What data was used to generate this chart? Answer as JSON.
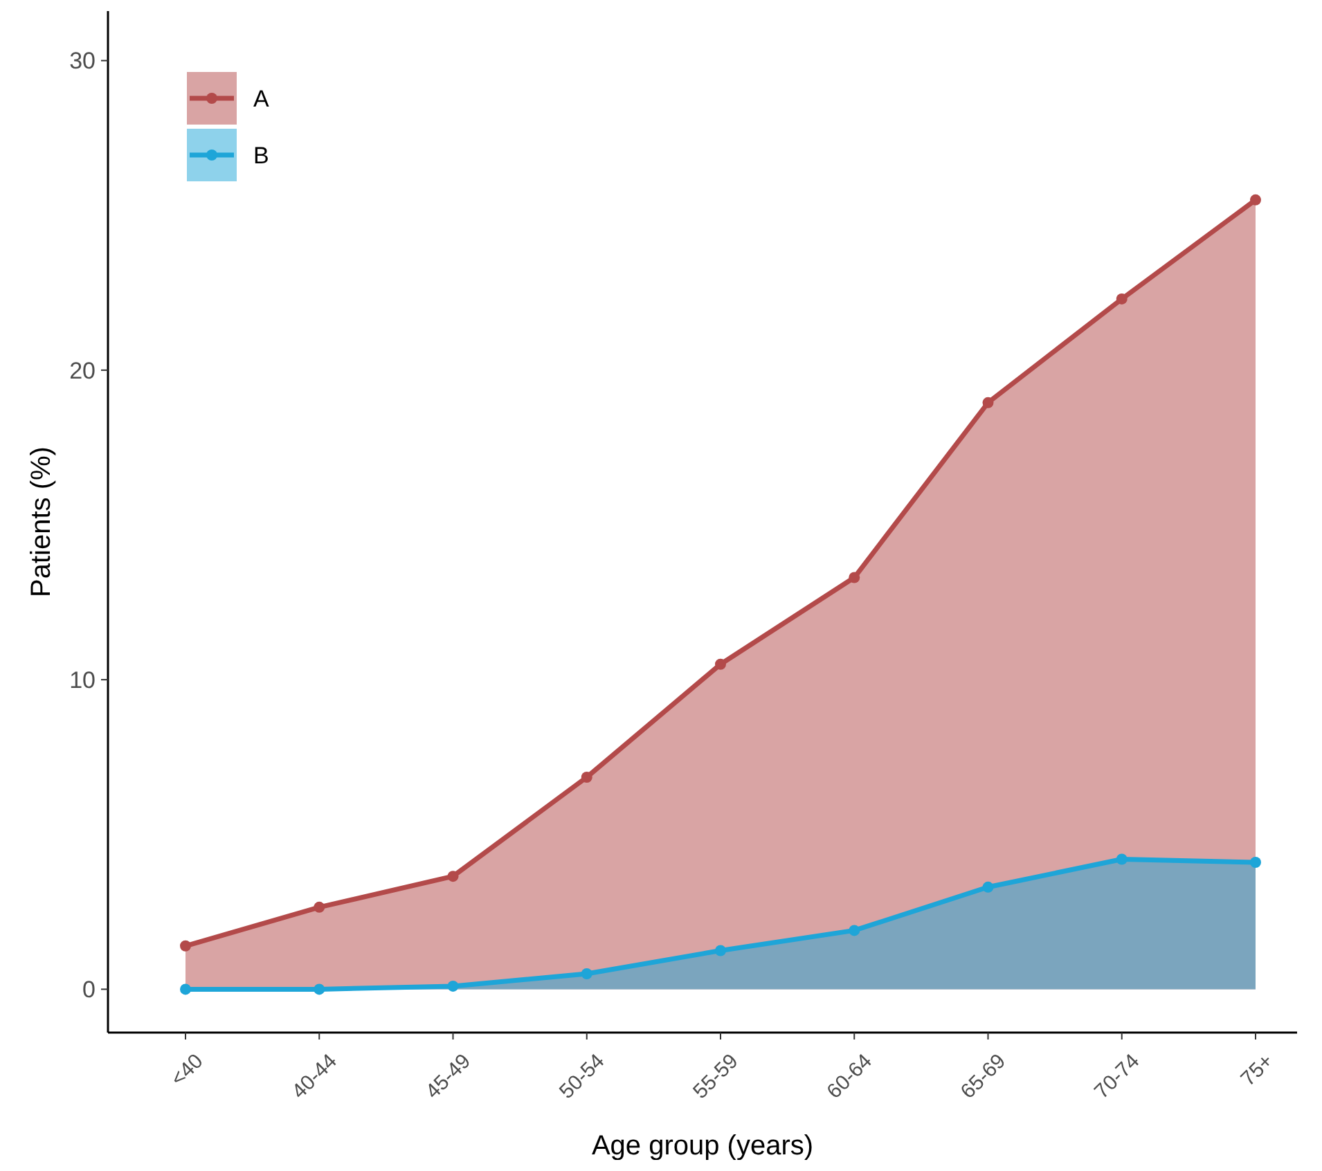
{
  "chart_data": {
    "type": "area",
    "xlabel": "Age group (years)",
    "ylabel": "Patients (%)",
    "categories": [
      "<40",
      "40-44",
      "45-49",
      "50-54",
      "55-59",
      "60-64",
      "65-69",
      "70-74",
      "75+"
    ],
    "series": [
      {
        "name": "A",
        "color": "#b34a4a",
        "values": [
          1.4,
          2.65,
          3.65,
          6.85,
          10.5,
          13.3,
          18.95,
          22.3,
          25.5
        ]
      },
      {
        "name": "B",
        "color": "#1ea5d8",
        "values": [
          0,
          0,
          0.1,
          0.5,
          1.25,
          1.9,
          3.3,
          4.2,
          4.1
        ]
      }
    ],
    "ylim": [
      -1.4,
      31.6
    ],
    "yticks": [
      0,
      10,
      20,
      30
    ],
    "grid": false,
    "legend": "top left",
    "marker": "circle",
    "line_style": "solid"
  }
}
